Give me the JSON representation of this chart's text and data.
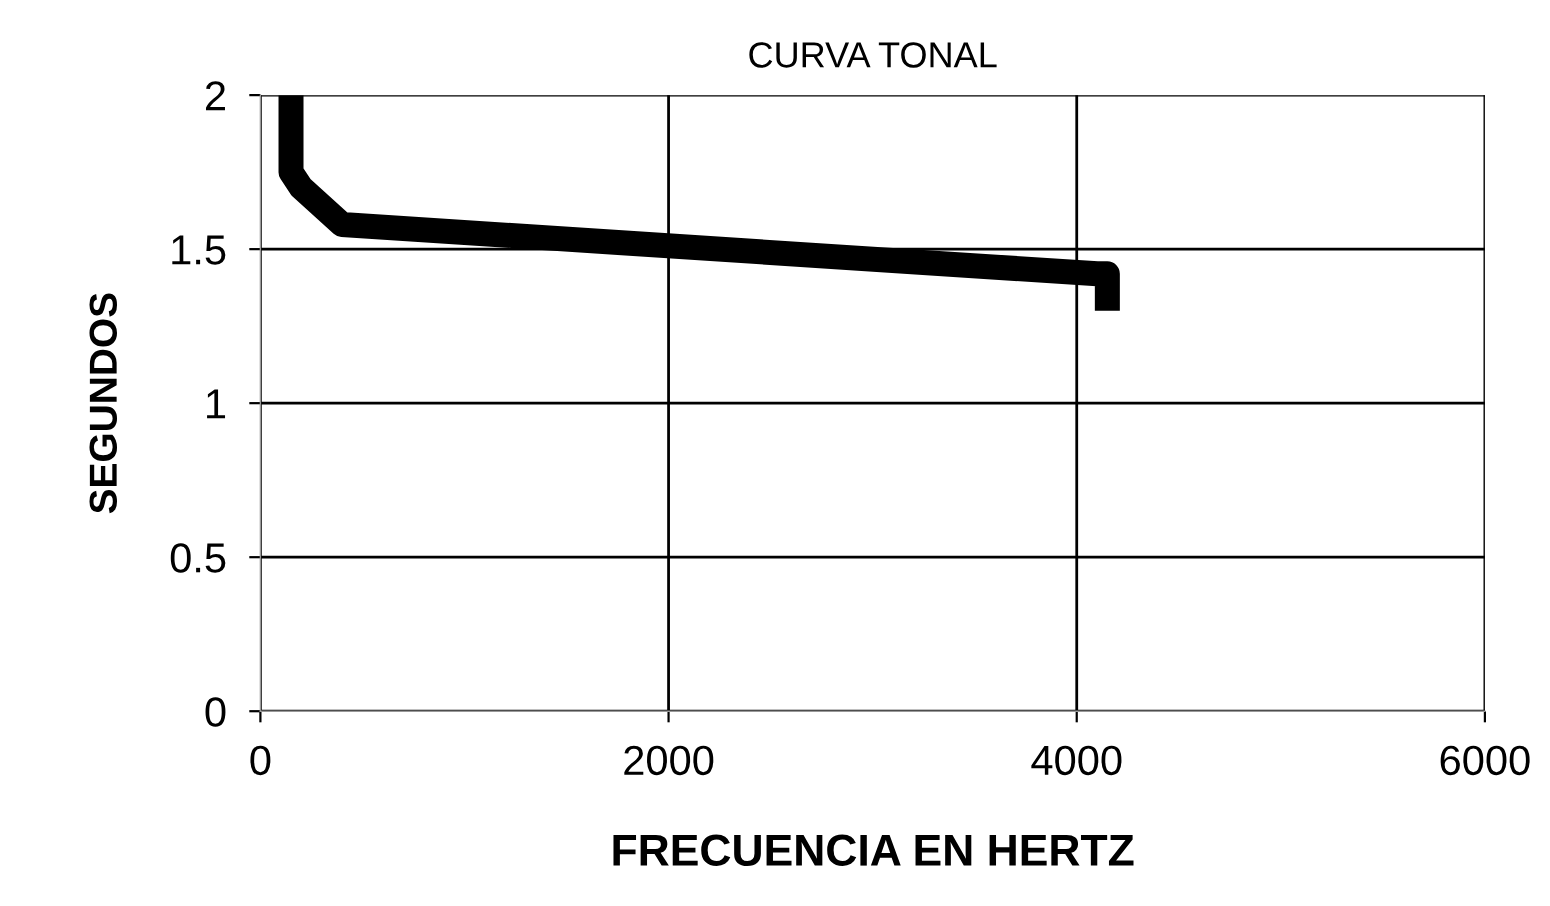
{
  "chart_data": {
    "type": "line",
    "title": "CURVA TONAL",
    "xlabel": "FRECUENCIA EN HERTZ",
    "ylabel": "SEGUNDOS",
    "x": [
      150,
      150,
      200,
      400,
      4100,
      4150,
      4150
    ],
    "series": [
      {
        "color": "#000000",
        "values": [
          2.0,
          1.75,
          1.7,
          1.58,
          1.42,
          1.42,
          1.3
        ]
      }
    ],
    "xlim": [
      0,
      6000
    ],
    "xticks": [
      0,
      2000,
      4000,
      6000
    ],
    "ylim": [
      0,
      2
    ],
    "yticks": [
      0,
      0.5,
      1,
      1.5,
      2
    ],
    "grid": true,
    "marker": "none",
    "line_style": "solid"
  }
}
